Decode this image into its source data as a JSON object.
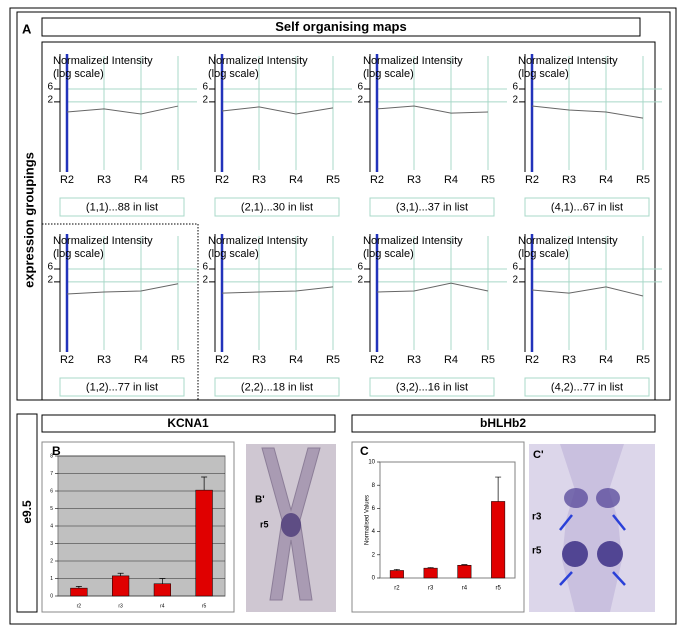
{
  "figure": {
    "panel": "A",
    "title": "Self organising maps",
    "row_label": "expression groupings",
    "stage": "e9.5",
    "headers": [
      "KCNA1",
      "bHLHb2"
    ]
  },
  "images": [
    {
      "panel": "B'",
      "labels": [
        "r5"
      ]
    },
    {
      "panel": "C'",
      "labels": [
        "r3",
        "r5"
      ]
    }
  ],
  "chart_data": [
    {
      "type": "line",
      "caption": "(1,1)...88 in list",
      "ylabel": [
        "Normalized Intensity",
        "(log scale)"
      ],
      "log_y": true,
      "categories": [
        "R2",
        "R3",
        "R4",
        "R5"
      ],
      "values": [
        0.84,
        1.1,
        0.71,
        1.4
      ],
      "color": "#666666",
      "ylim": [
        0.01,
        100
      ],
      "yticks": [
        2,
        6
      ],
      "grid": true
    },
    {
      "type": "line",
      "caption": "(2,1)...30 in list",
      "ylabel": [
        "Normalized Intensity",
        "(log scale)"
      ],
      "log_y": true,
      "categories": [
        "R2",
        "R3",
        "R4",
        "R5"
      ],
      "values": [
        0.92,
        1.3,
        0.71,
        1.2
      ],
      "color": "#666666",
      "ylim": [
        0.01,
        100
      ],
      "yticks": [
        2,
        6
      ],
      "grid": true
    },
    {
      "type": "line",
      "caption": "(3,1)...37 in list",
      "ylabel": [
        "Normalized Intensity",
        "(log scale)"
      ],
      "log_y": true,
      "categories": [
        "R2",
        "R3",
        "R4",
        "R5"
      ],
      "values": [
        1.1,
        1.4,
        0.77,
        0.84
      ],
      "color": "#666666",
      "ylim": [
        0.01,
        100
      ],
      "yticks": [
        2,
        6
      ],
      "grid": true
    },
    {
      "type": "line",
      "caption": "(4,1)...67 in list",
      "ylabel": [
        "Normalized Intensity",
        "(log scale)"
      ],
      "log_y": true,
      "categories": [
        "R2",
        "R3",
        "R4",
        "R5"
      ],
      "values": [
        1.4,
        1.0,
        0.84,
        0.5
      ],
      "color": "#666666",
      "ylim": [
        0.01,
        100
      ],
      "yticks": [
        2,
        6
      ],
      "grid": true
    },
    {
      "type": "line",
      "caption": "(1,2)...77 in list",
      "ylabel": [
        "Normalized Intensity",
        "(log scale)"
      ],
      "log_y": true,
      "categories": [
        "R2",
        "R3",
        "R4",
        "R5"
      ],
      "values": [
        0.71,
        0.84,
        0.92,
        1.7
      ],
      "color": "#666666",
      "ylim": [
        0.01,
        100
      ],
      "yticks": [
        2,
        6
      ],
      "grid": true
    },
    {
      "type": "line",
      "caption": "(2,2)...18 in list",
      "ylabel": [
        "Normalized Intensity",
        "(log scale)"
      ],
      "log_y": true,
      "categories": [
        "R2",
        "R3",
        "R4",
        "R5"
      ],
      "values": [
        0.77,
        0.84,
        0.92,
        1.3
      ],
      "color": "#666666",
      "ylim": [
        0.01,
        100
      ],
      "yticks": [
        2,
        6
      ],
      "grid": true
    },
    {
      "type": "line",
      "caption": "(3,2)...16 in list",
      "ylabel": [
        "Normalized Intensity",
        "(log scale)"
      ],
      "log_y": true,
      "categories": [
        "R2",
        "R3",
        "R4",
        "R5"
      ],
      "values": [
        0.84,
        0.92,
        1.8,
        0.92
      ],
      "color": "#666666",
      "ylim": [
        0.01,
        100
      ],
      "yticks": [
        2,
        6
      ],
      "grid": true
    },
    {
      "type": "line",
      "caption": "(4,2)...77 in list",
      "ylabel": [
        "Normalized Intensity",
        "(log scale)"
      ],
      "log_y": true,
      "categories": [
        "R2",
        "R3",
        "R4",
        "R5"
      ],
      "values": [
        1.0,
        0.77,
        1.3,
        0.6
      ],
      "color": "#666666",
      "ylim": [
        0.01,
        100
      ],
      "yticks": [
        2,
        6
      ],
      "grid": true
    },
    {
      "type": "bar",
      "panel": "B",
      "categories": [
        "r2",
        "r3",
        "r4",
        "r5"
      ],
      "values": [
        0.45,
        1.15,
        0.7,
        6.05
      ],
      "errors": [
        0.1,
        0.15,
        0.3,
        0.75
      ],
      "color": "#e00000",
      "ylim": [
        0,
        8
      ],
      "yticks": [
        0,
        1,
        2,
        3,
        4,
        5,
        6,
        7,
        8
      ],
      "grid": true
    },
    {
      "type": "bar",
      "panel": "C",
      "ylabel": "Normalised Values",
      "categories": [
        "r2",
        "r3",
        "r4",
        "r5"
      ],
      "values": [
        0.65,
        0.85,
        1.1,
        6.6
      ],
      "errors": [
        0.1,
        0.05,
        0.05,
        2.1
      ],
      "color": "#e00000",
      "ylim": [
        0,
        10
      ],
      "yticks": [
        0,
        2,
        4,
        6,
        8,
        10
      ],
      "grid": false
    }
  ]
}
